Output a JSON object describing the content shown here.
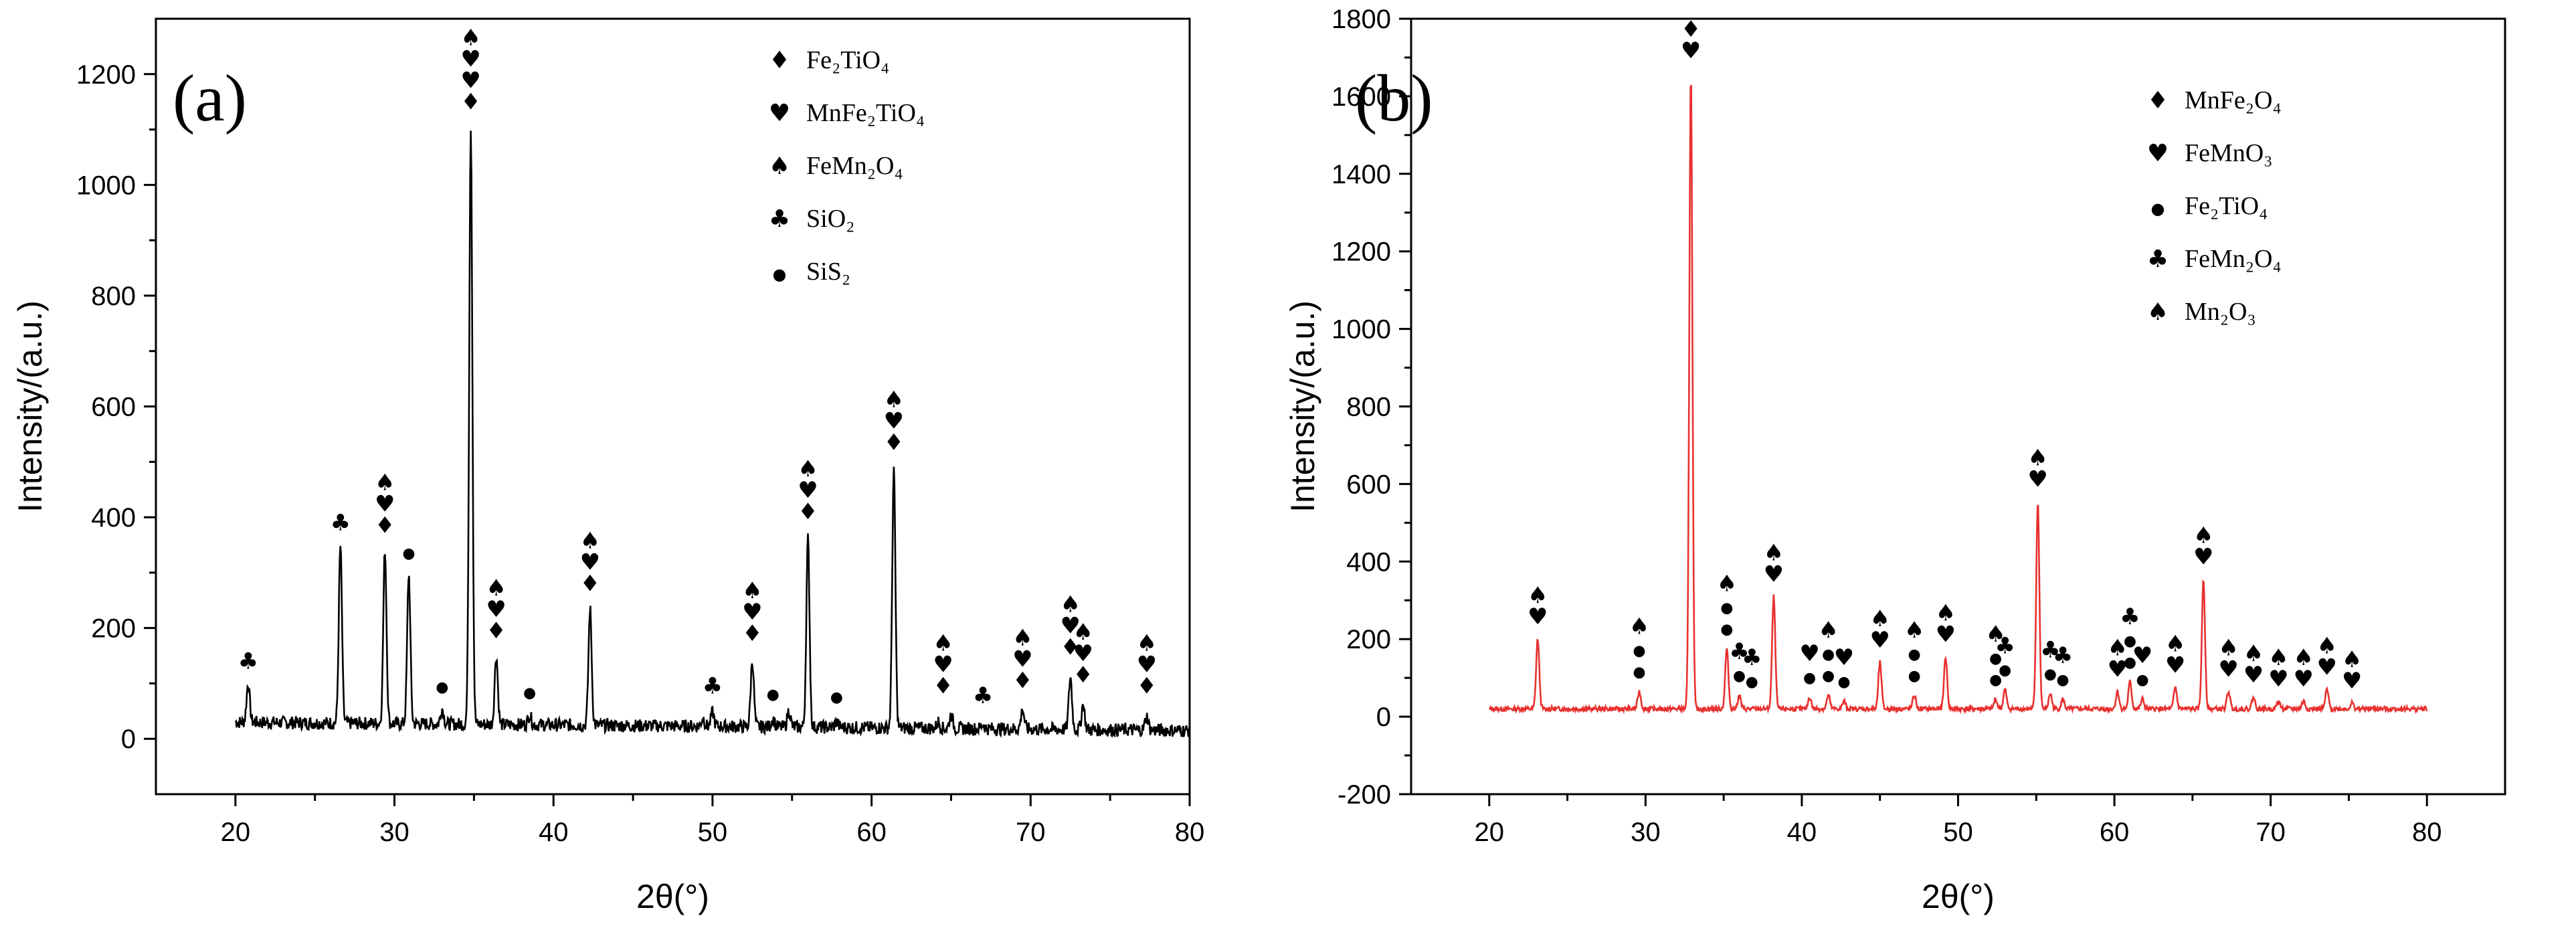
{
  "chart_data": [
    {
      "type": "line",
      "panel_label": "(a)",
      "xlabel": "2θ(°)",
      "ylabel": "Intensity/(a.u.)",
      "xlim": [
        15,
        80
      ],
      "ylim": [
        -100,
        1300
      ],
      "xticks": [
        20,
        30,
        40,
        50,
        60,
        70,
        80
      ],
      "yticks": [
        0,
        200,
        400,
        600,
        800,
        1000,
        1200
      ],
      "line_color": "#000000",
      "legend_position": "top-right",
      "legend": [
        {
          "symbol": "♦",
          "text": "Fe₂TiO₄"
        },
        {
          "symbol": "♥",
          "text": "MnFe₂TiO₄"
        },
        {
          "symbol": "♠",
          "text": "FeMn₂O₄"
        },
        {
          "symbol": "♣",
          "text": "SiO₂"
        },
        {
          "symbol": "●",
          "text": "SiS₂"
        }
      ],
      "baseline": 30,
      "peaks": [
        {
          "x": 20.8,
          "y": 100
        },
        {
          "x": 26.6,
          "y": 350
        },
        {
          "x": 29.4,
          "y": 345
        },
        {
          "x": 30.9,
          "y": 300
        },
        {
          "x": 33.0,
          "y": 58
        },
        {
          "x": 34.8,
          "y": 1110
        },
        {
          "x": 36.4,
          "y": 155
        },
        {
          "x": 38.5,
          "y": 48
        },
        {
          "x": 42.3,
          "y": 240
        },
        {
          "x": 49.4,
          "y": 45
        },
        {
          "x": 50.0,
          "y": 55
        },
        {
          "x": 52.5,
          "y": 150
        },
        {
          "x": 53.8,
          "y": 45
        },
        {
          "x": 54.8,
          "y": 60
        },
        {
          "x": 56.0,
          "y": 370
        },
        {
          "x": 57.8,
          "y": 40
        },
        {
          "x": 61.4,
          "y": 495
        },
        {
          "x": 64.2,
          "y": 42
        },
        {
          "x": 65.0,
          "y": 55
        },
        {
          "x": 67.0,
          "y": 38
        },
        {
          "x": 69.5,
          "y": 65
        },
        {
          "x": 72.5,
          "y": 125
        },
        {
          "x": 73.3,
          "y": 75
        },
        {
          "x": 77.3,
          "y": 55
        }
      ],
      "markers": [
        {
          "x": 20.8,
          "y": 100,
          "symbols": [
            "♣"
          ]
        },
        {
          "x": 26.6,
          "y": 350,
          "symbols": [
            "♣"
          ]
        },
        {
          "x": 29.4,
          "y": 345,
          "symbols": [
            "♠",
            "♥",
            "♦"
          ]
        },
        {
          "x": 30.9,
          "y": 300,
          "symbols": [
            "●"
          ]
        },
        {
          "x": 33.0,
          "y": 58,
          "symbols": [
            "●"
          ]
        },
        {
          "x": 34.8,
          "y": 1110,
          "symbols": [
            "♠",
            "♥",
            "♥",
            "♦"
          ]
        },
        {
          "x": 36.4,
          "y": 155,
          "symbols": [
            "♠",
            "♥",
            "♦"
          ]
        },
        {
          "x": 38.5,
          "y": 48,
          "symbols": [
            "●"
          ]
        },
        {
          "x": 42.3,
          "y": 240,
          "symbols": [
            "♠",
            "♥",
            "♦"
          ]
        },
        {
          "x": 50.0,
          "y": 55,
          "symbols": [
            "♣"
          ]
        },
        {
          "x": 52.5,
          "y": 150,
          "symbols": [
            "♠",
            "♥",
            "♦"
          ]
        },
        {
          "x": 53.8,
          "y": 45,
          "symbols": [
            "●"
          ]
        },
        {
          "x": 56.0,
          "y": 370,
          "symbols": [
            "♠",
            "♥",
            "♦"
          ]
        },
        {
          "x": 57.8,
          "y": 40,
          "symbols": [
            "●"
          ]
        },
        {
          "x": 61.4,
          "y": 495,
          "symbols": [
            "♠",
            "♥",
            "♦"
          ]
        },
        {
          "x": 64.5,
          "y": 55,
          "symbols": [
            "♠",
            "♥",
            "♦"
          ]
        },
        {
          "x": 67.0,
          "y": 38,
          "symbols": [
            "♣"
          ]
        },
        {
          "x": 69.5,
          "y": 65,
          "symbols": [
            "♠",
            "♥",
            "♦"
          ]
        },
        {
          "x": 72.5,
          "y": 125,
          "symbols": [
            "♠",
            "♥",
            "♦"
          ]
        },
        {
          "x": 73.3,
          "y": 75,
          "symbols": [
            "♠",
            "♥",
            "♦"
          ]
        },
        {
          "x": 77.3,
          "y": 55,
          "symbols": [
            "♠",
            "♥",
            "♦"
          ]
        }
      ]
    },
    {
      "type": "line",
      "panel_label": "(b)",
      "xlabel": "2θ(°)",
      "ylabel": "Intensity/(a.u.)",
      "xlim": [
        15,
        85
      ],
      "ylim": [
        -200,
        1800
      ],
      "xticks": [
        20,
        30,
        40,
        50,
        60,
        70,
        80
      ],
      "yticks": [
        -200,
        0,
        200,
        400,
        600,
        800,
        1000,
        1200,
        1400,
        1600,
        1800
      ],
      "line_color": "#e8312f",
      "legend_position": "top-right",
      "legend": [
        {
          "symbol": "♦",
          "text": "MnFe₂O₄"
        },
        {
          "symbol": "♥",
          "text": "FeMnO₃"
        },
        {
          "symbol": "●",
          "text": "Fe₂TiO₄"
        },
        {
          "symbol": "♣",
          "text": "FeMn₂O₄"
        },
        {
          "symbol": "♠",
          "text": "Mn₂O₃"
        }
      ],
      "baseline": 20,
      "peaks": [
        {
          "x": 23.1,
          "y": 200
        },
        {
          "x": 29.6,
          "y": 65
        },
        {
          "x": 32.9,
          "y": 1660
        },
        {
          "x": 35.2,
          "y": 175
        },
        {
          "x": 36.0,
          "y": 55
        },
        {
          "x": 38.2,
          "y": 310
        },
        {
          "x": 40.5,
          "y": 50
        },
        {
          "x": 41.7,
          "y": 55
        },
        {
          "x": 42.7,
          "y": 40
        },
        {
          "x": 45.0,
          "y": 140
        },
        {
          "x": 47.2,
          "y": 55
        },
        {
          "x": 49.2,
          "y": 155
        },
        {
          "x": 52.4,
          "y": 45
        },
        {
          "x": 53.0,
          "y": 70
        },
        {
          "x": 55.1,
          "y": 555
        },
        {
          "x": 55.9,
          "y": 60
        },
        {
          "x": 56.7,
          "y": 45
        },
        {
          "x": 60.2,
          "y": 65
        },
        {
          "x": 61.0,
          "y": 90
        },
        {
          "x": 61.8,
          "y": 45
        },
        {
          "x": 63.9,
          "y": 75
        },
        {
          "x": 65.7,
          "y": 355
        },
        {
          "x": 67.3,
          "y": 65
        },
        {
          "x": 68.9,
          "y": 50
        },
        {
          "x": 70.5,
          "y": 40
        },
        {
          "x": 72.1,
          "y": 40
        },
        {
          "x": 73.6,
          "y": 70
        },
        {
          "x": 75.2,
          "y": 35
        }
      ],
      "markers": [
        {
          "x": 23.1,
          "y": 200,
          "symbols": [
            "♠",
            "♥"
          ]
        },
        {
          "x": 29.6,
          "y": 65,
          "symbols": [
            "♠",
            "●",
            "●"
          ]
        },
        {
          "x": 32.9,
          "y": 1660,
          "symbols": [
            "♦",
            "♥"
          ]
        },
        {
          "x": 35.2,
          "y": 175,
          "symbols": [
            "♠",
            "●",
            "●"
          ]
        },
        {
          "x": 36.0,
          "y": 55,
          "symbols": [
            "♣",
            "●"
          ]
        },
        {
          "x": 36.8,
          "y": 40,
          "symbols": [
            "♣",
            "●"
          ]
        },
        {
          "x": 38.2,
          "y": 310,
          "symbols": [
            "♠",
            "♥"
          ]
        },
        {
          "x": 40.5,
          "y": 50,
          "symbols": [
            "♥",
            "●"
          ]
        },
        {
          "x": 41.7,
          "y": 55,
          "symbols": [
            "♠",
            "●",
            "●"
          ]
        },
        {
          "x": 42.7,
          "y": 40,
          "symbols": [
            "♥",
            "●"
          ]
        },
        {
          "x": 45.0,
          "y": 140,
          "symbols": [
            "♠",
            "♥"
          ]
        },
        {
          "x": 47.2,
          "y": 55,
          "symbols": [
            "♠",
            "●",
            "●"
          ]
        },
        {
          "x": 49.2,
          "y": 155,
          "symbols": [
            "♠",
            "♥"
          ]
        },
        {
          "x": 52.4,
          "y": 45,
          "symbols": [
            "♠",
            "●",
            "●"
          ]
        },
        {
          "x": 53.0,
          "y": 70,
          "symbols": [
            "♣",
            "●"
          ]
        },
        {
          "x": 55.1,
          "y": 555,
          "symbols": [
            "♠",
            "♥"
          ]
        },
        {
          "x": 55.9,
          "y": 60,
          "symbols": [
            "♣",
            "●"
          ]
        },
        {
          "x": 56.7,
          "y": 45,
          "symbols": [
            "♣",
            "●"
          ]
        },
        {
          "x": 60.2,
          "y": 65,
          "symbols": [
            "♠",
            "♥"
          ]
        },
        {
          "x": 61.0,
          "y": 90,
          "symbols": [
            "♣",
            "●",
            "●"
          ]
        },
        {
          "x": 61.8,
          "y": 45,
          "symbols": [
            "♥",
            "●"
          ]
        },
        {
          "x": 63.9,
          "y": 75,
          "symbols": [
            "♠",
            "♥"
          ]
        },
        {
          "x": 65.7,
          "y": 355,
          "symbols": [
            "♠",
            "♥"
          ]
        },
        {
          "x": 67.3,
          "y": 65,
          "symbols": [
            "♠",
            "♥"
          ]
        },
        {
          "x": 68.9,
          "y": 50,
          "symbols": [
            "♠",
            "♥"
          ]
        },
        {
          "x": 70.5,
          "y": 40,
          "symbols": [
            "♠",
            "♥"
          ]
        },
        {
          "x": 72.1,
          "y": 40,
          "symbols": [
            "♠",
            "♥"
          ]
        },
        {
          "x": 73.6,
          "y": 70,
          "symbols": [
            "♠",
            "♥"
          ]
        },
        {
          "x": 75.2,
          "y": 35,
          "symbols": [
            "♠",
            "♥"
          ]
        }
      ]
    }
  ]
}
